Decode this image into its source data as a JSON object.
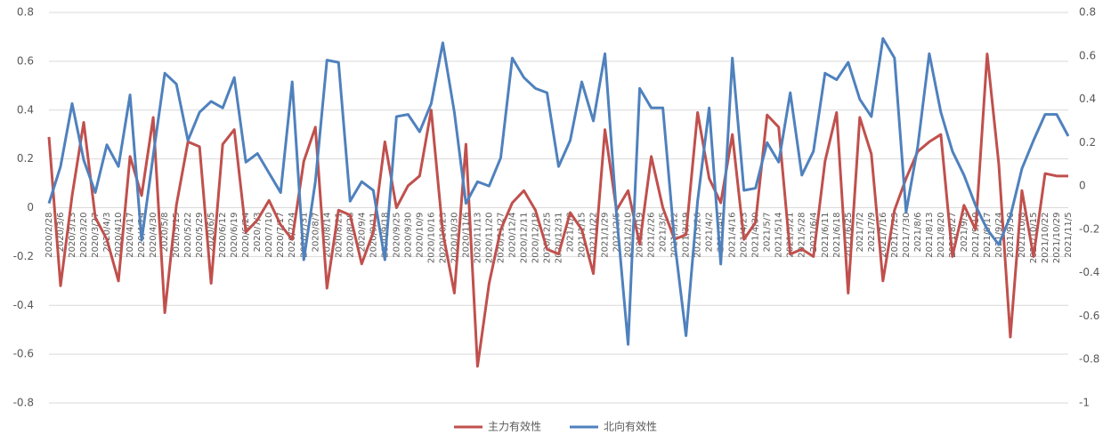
{
  "chart_data": {
    "type": "line",
    "categories": [
      "2020/2/28",
      "2020/3/6",
      "2020/3/13",
      "2020/3/20",
      "2020/3/27",
      "2020/4/3",
      "2020/4/10",
      "2020/4/17",
      "2020/4/24",
      "2020/4/30",
      "2020/5/8",
      "2020/5/15",
      "2020/5/22",
      "2020/5/29",
      "2020/6/5",
      "2020/6/12",
      "2020/6/19",
      "2020/6/24",
      "2020/7/3",
      "2020/7/10",
      "2020/7/17",
      "2020/7/24",
      "2020/7/31",
      "2020/8/7",
      "2020/8/14",
      "2020/8/21",
      "2020/8/28",
      "2020/9/4",
      "2020/9/11",
      "2020/9/18",
      "2020/9/25",
      "2020/9/30",
      "2020/10/9",
      "2020/10/16",
      "2020/10/23",
      "2020/10/30",
      "2020/11/6",
      "2020/11/13",
      "2020/11/20",
      "2020/11/27",
      "2020/12/4",
      "2020/12/11",
      "2020/12/18",
      "2020/12/25",
      "2020/12/31",
      "2021/1/8",
      "2021/1/15",
      "2021/1/22",
      "2021/1/29",
      "2021/2/5",
      "2021/2/10",
      "2021/2/19",
      "2021/2/26",
      "2021/3/5",
      "2021/3/12",
      "2021/3/19",
      "2021/3/26",
      "2021/4/2",
      "2021/4/9",
      "2021/4/16",
      "2021/4/23",
      "2021/4/30",
      "2021/5/7",
      "2021/5/14",
      "2021/5/21",
      "2021/5/28",
      "2021/6/4",
      "2021/6/11",
      "2021/6/18",
      "2021/6/25",
      "2021/7/2",
      "2021/7/9",
      "2021/7/16",
      "2021/7/23",
      "2021/7/30",
      "2021/8/6",
      "2021/8/13",
      "2021/8/20",
      "2021/8/27",
      "2021/9/3",
      "2021/9/10",
      "2021/9/17",
      "2021/9/24",
      "2021/9/30",
      "2021/10/8",
      "2021/10/15",
      "2021/10/22",
      "2021/10/29",
      "2021/11/5"
    ],
    "series": [
      {
        "name": "主力有效性",
        "color": "#c0504d",
        "axis": "y",
        "values": [
          0.29,
          -0.32,
          0.05,
          0.35,
          -0.04,
          -0.13,
          -0.3,
          0.21,
          0.05,
          0.37,
          -0.43,
          0.01,
          0.27,
          0.25,
          -0.31,
          0.26,
          0.32,
          -0.1,
          -0.05,
          0.03,
          -0.07,
          -0.13,
          0.19,
          0.33,
          -0.33,
          -0.01,
          -0.03,
          -0.23,
          -0.1,
          0.27,
          0.0,
          0.09,
          0.13,
          0.4,
          -0.1,
          -0.35,
          0.26,
          -0.65,
          -0.31,
          -0.09,
          0.02,
          0.07,
          -0.01,
          -0.17,
          -0.19,
          -0.02,
          -0.09,
          -0.27,
          0.32,
          -0.01,
          0.07,
          -0.15,
          0.21,
          0.0,
          -0.13,
          -0.11,
          0.39,
          0.12,
          0.02,
          0.3,
          -0.13,
          -0.06,
          0.38,
          0.33,
          -0.19,
          -0.17,
          -0.2,
          0.19,
          0.39,
          -0.35,
          0.37,
          0.22,
          -0.3,
          -0.01,
          0.12,
          0.23,
          0.27,
          0.3,
          -0.2,
          0.01,
          -0.09,
          0.63,
          0.18,
          -0.53,
          0.07,
          -0.2,
          0.14,
          0.13,
          0.13
        ]
      },
      {
        "name": "北向有效性",
        "color": "#4f81bd",
        "axis": "y2",
        "values": [
          -0.08,
          0.09,
          0.38,
          0.12,
          -0.03,
          0.19,
          0.09,
          0.42,
          -0.25,
          0.14,
          0.52,
          0.47,
          0.21,
          0.34,
          0.39,
          0.36,
          0.5,
          0.11,
          0.15,
          0.06,
          -0.03,
          0.48,
          -0.34,
          0.02,
          0.58,
          0.57,
          -0.07,
          0.02,
          -0.02,
          -0.34,
          0.32,
          0.33,
          0.25,
          0.38,
          0.66,
          0.34,
          -0.08,
          0.02,
          0.0,
          0.13,
          0.59,
          0.5,
          0.45,
          0.43,
          0.09,
          0.21,
          0.48,
          0.3,
          0.61,
          -0.13,
          -0.73,
          0.45,
          0.36,
          0.36,
          -0.25,
          -0.69,
          -0.07,
          0.36,
          -0.36,
          0.59,
          -0.02,
          -0.01,
          0.2,
          0.11,
          0.43,
          0.05,
          0.16,
          0.52,
          0.49,
          0.57,
          0.4,
          0.32,
          0.68,
          0.59,
          -0.12,
          0.18,
          0.61,
          0.34,
          0.16,
          0.05,
          -0.09,
          -0.2,
          -0.27,
          -0.14,
          0.08,
          0.21,
          0.33,
          0.33,
          0.23
        ]
      }
    ],
    "ylim": [
      -0.8,
      0.8
    ],
    "yticks": [
      -0.8,
      -0.6,
      -0.4,
      -0.2,
      0,
      0.2,
      0.4,
      0.6,
      0.8
    ],
    "y2lim": [
      -1,
      0.8
    ],
    "y2ticks": [
      -1,
      -0.8,
      -0.6,
      -0.4,
      -0.2,
      0,
      0.2,
      0.4,
      0.6,
      0.8
    ],
    "grid": true,
    "legend": "bottom"
  }
}
